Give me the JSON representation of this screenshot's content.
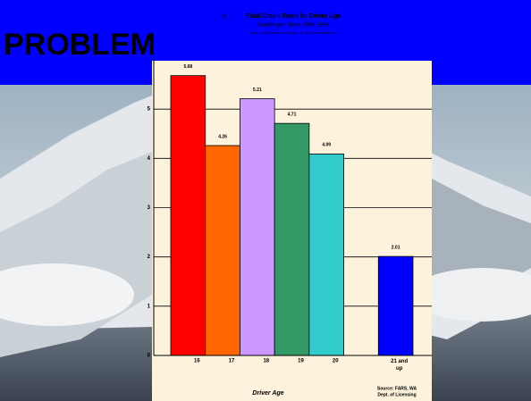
{
  "slide_title": "PROBLEM",
  "chart_data": {
    "type": "bar",
    "figure_label": "fig. 1 :",
    "title": "Fatal Crash Rates by Driver Age",
    "subtitle": "Washington State, 1993-1998",
    "note": "Rate of traffic fatal crashes per 10,000 licensed drivers",
    "x_label": "Driver Age",
    "source": [
      "Source:  FARS, WA",
      "Dept. of Licensing"
    ],
    "categories": [
      "16",
      "17",
      "18",
      "19",
      "20",
      null,
      "21 and up"
    ],
    "values": [
      5.68,
      4.26,
      5.21,
      4.71,
      4.09,
      null,
      2.01
    ],
    "colors": [
      "#ff0000",
      "#ff6600",
      "#cc99ff",
      "#339966",
      "#33cccc",
      null,
      "#0000ff"
    ],
    "ylim": [
      0,
      6
    ],
    "yticks": [
      0,
      1,
      2,
      3,
      4,
      5
    ],
    "grid": true
  }
}
